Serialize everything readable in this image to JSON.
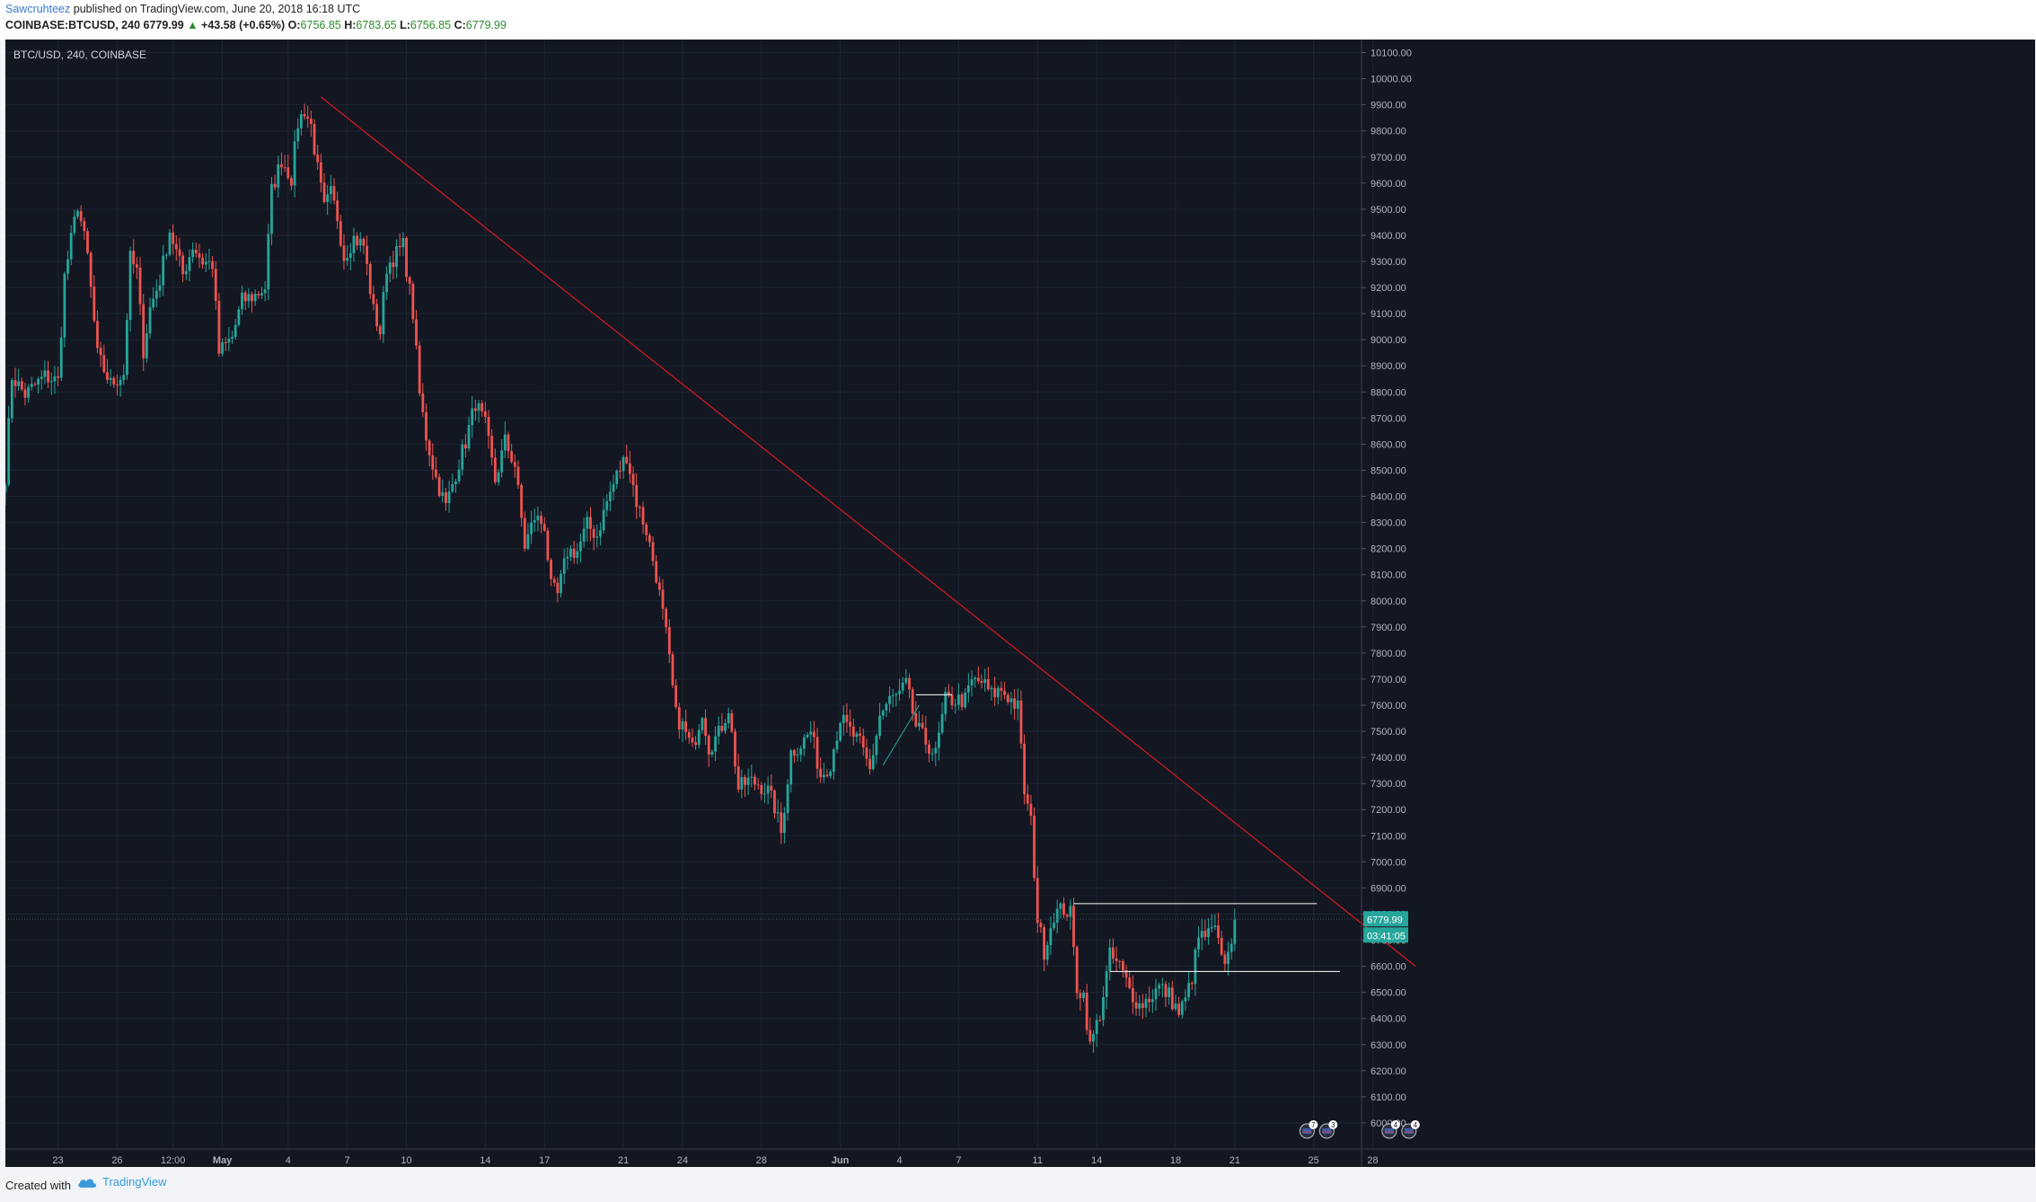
{
  "header": {
    "author": "Sawcruhteez",
    "published": "published on TradingView.com, June 20, 2018 16:18 UTC",
    "symbol": "COINBASE:BTCUSD, 240",
    "last": "6779.99",
    "arrow": "▲",
    "change": "+43.58 (+0.65%)",
    "o_label": "O:",
    "o_value": "6756.85",
    "h_label": "H:",
    "h_value": "6783.65",
    "l_label": "L:",
    "l_value": "6756.85",
    "c_label": "C:",
    "c_value": "6779.99"
  },
  "footer": {
    "created_with": "Created with",
    "brand": "TradingView"
  },
  "colors": {
    "background": "#131722",
    "grid": "#1e2433",
    "up": "#26a69a",
    "down": "#ef5350",
    "trendline": "#c2181f",
    "level": "#ffffff",
    "price_tag": "#26a69a"
  },
  "chart_data": {
    "type": "candlestick",
    "title": "BTC/USD, 240, COINBASE",
    "ylim": [
      5900,
      10150
    ],
    "y_ticks": [
      10100,
      10000,
      9900,
      9800,
      9700,
      9600,
      9500,
      9400,
      9300,
      9200,
      9100,
      9000,
      8900,
      8800,
      8700,
      8600,
      8500,
      8400,
      8300,
      8200,
      8100,
      8000,
      7900,
      7800,
      7700,
      7600,
      7500,
      7400,
      7300,
      7200,
      7100,
      7000,
      6900,
      6800,
      6700,
      6600,
      6500,
      6400,
      6300,
      6200,
      6100,
      6000
    ],
    "y_tick_labels": [
      "10100.00",
      "10000.00",
      "9900.00",
      "9800.00",
      "9700.00",
      "9600.00",
      "9500.00",
      "9400.00",
      "9300.00",
      "9200.00",
      "9100.00",
      "9000.00",
      "8900.00",
      "8800.00",
      "8700.00",
      "8600.00",
      "8500.00",
      "8400.00",
      "8300.00",
      "8200.00",
      "8100.00",
      "8000.00",
      "7900.00",
      "7800.00",
      "7700.00",
      "7600.00",
      "7500.00",
      "7400.00",
      "7300.00",
      "7200.00",
      "7100.00",
      "7000.00",
      "6900.00",
      "6800.00",
      "6700.00",
      "6600.00",
      "6500.00",
      "6400.00",
      "6300.00",
      "6200.00",
      "6100.00",
      "6000.00"
    ],
    "x_range": [
      0,
      456
    ],
    "x_ticks": [
      {
        "label": "23",
        "i": 16
      },
      {
        "label": "26",
        "i": 34
      },
      {
        "label": "12:00",
        "i": 51
      },
      {
        "label": "May",
        "i": 66
      },
      {
        "label": "4",
        "i": 86
      },
      {
        "label": "7",
        "i": 104
      },
      {
        "label": "10",
        "i": 122
      },
      {
        "label": "14",
        "i": 146
      },
      {
        "label": "17",
        "i": 164
      },
      {
        "label": "21",
        "i": 188
      },
      {
        "label": "24",
        "i": 206
      },
      {
        "label": "28",
        "i": 230
      },
      {
        "label": "Jun",
        "i": 254
      },
      {
        "label": "4",
        "i": 272
      },
      {
        "label": "7",
        "i": 290
      },
      {
        "label": "11",
        "i": 314
      },
      {
        "label": "14",
        "i": 332
      },
      {
        "label": "18",
        "i": 356
      },
      {
        "label": "21",
        "i": 374
      },
      {
        "label": "25",
        "i": 398
      },
      {
        "label": "28",
        "i": 416
      }
    ],
    "anchors": [
      [
        0,
        8480
      ],
      [
        2,
        8860
      ],
      [
        6,
        8790
      ],
      [
        12,
        8860
      ],
      [
        16,
        8840
      ],
      [
        18,
        9240
      ],
      [
        22,
        9520
      ],
      [
        25,
        9320
      ],
      [
        28,
        8940
      ],
      [
        32,
        8830
      ],
      [
        36,
        8870
      ],
      [
        38,
        9310
      ],
      [
        40,
        9260
      ],
      [
        42,
        8960
      ],
      [
        44,
        9120
      ],
      [
        47,
        9230
      ],
      [
        50,
        9420
      ],
      [
        54,
        9250
      ],
      [
        57,
        9360
      ],
      [
        60,
        9300
      ],
      [
        63,
        9290
      ],
      [
        65,
        8950
      ],
      [
        69,
        9010
      ],
      [
        72,
        9150
      ],
      [
        76,
        9170
      ],
      [
        79,
        9200
      ],
      [
        81,
        9570
      ],
      [
        84,
        9690
      ],
      [
        87,
        9620
      ],
      [
        89,
        9830
      ],
      [
        91,
        9880
      ],
      [
        93,
        9820
      ],
      [
        95,
        9650
      ],
      [
        97,
        9500
      ],
      [
        99,
        9560
      ],
      [
        101,
        9470
      ],
      [
        103,
        9320
      ],
      [
        106,
        9390
      ],
      [
        109,
        9360
      ],
      [
        112,
        9110
      ],
      [
        114,
        9030
      ],
      [
        116,
        9280
      ],
      [
        119,
        9330
      ],
      [
        121,
        9360
      ],
      [
        124,
        9100
      ],
      [
        126,
        8790
      ],
      [
        128,
        8630
      ],
      [
        131,
        8470
      ],
      [
        134,
        8360
      ],
      [
        137,
        8490
      ],
      [
        140,
        8610
      ],
      [
        143,
        8760
      ],
      [
        146,
        8670
      ],
      [
        149,
        8460
      ],
      [
        152,
        8610
      ],
      [
        155,
        8520
      ],
      [
        158,
        8210
      ],
      [
        161,
        8320
      ],
      [
        164,
        8290
      ],
      [
        166,
        8050
      ],
      [
        168,
        8020
      ],
      [
        171,
        8190
      ],
      [
        174,
        8190
      ],
      [
        177,
        8290
      ],
      [
        180,
        8250
      ],
      [
        183,
        8380
      ],
      [
        186,
        8480
      ],
      [
        189,
        8560
      ],
      [
        192,
        8380
      ],
      [
        195,
        8270
      ],
      [
        198,
        8100
      ],
      [
        201,
        7870
      ],
      [
        204,
        7560
      ],
      [
        206,
        7520
      ],
      [
        209,
        7430
      ],
      [
        212,
        7580
      ],
      [
        214,
        7440
      ],
      [
        217,
        7490
      ],
      [
        220,
        7590
      ],
      [
        223,
        7280
      ],
      [
        226,
        7310
      ],
      [
        229,
        7300
      ],
      [
        232,
        7270
      ],
      [
        234,
        7210
      ],
      [
        236,
        7110
      ],
      [
        239,
        7420
      ],
      [
        242,
        7450
      ],
      [
        245,
        7500
      ],
      [
        248,
        7330
      ],
      [
        251,
        7380
      ],
      [
        254,
        7550
      ],
      [
        257,
        7500
      ],
      [
        260,
        7450
      ],
      [
        263,
        7350
      ],
      [
        266,
        7560
      ],
      [
        269,
        7620
      ],
      [
        272,
        7640
      ],
      [
        274,
        7680
      ],
      [
        277,
        7520
      ],
      [
        280,
        7460
      ],
      [
        283,
        7410
      ],
      [
        286,
        7620
      ],
      [
        289,
        7620
      ],
      [
        292,
        7620
      ],
      [
        294,
        7690
      ],
      [
        297,
        7690
      ],
      [
        300,
        7640
      ],
      [
        303,
        7660
      ],
      [
        306,
        7620
      ],
      [
        308,
        7590
      ],
      [
        310,
        7270
      ],
      [
        312,
        7150
      ],
      [
        314,
        6780
      ],
      [
        316,
        6660
      ],
      [
        319,
        6800
      ],
      [
        322,
        6820
      ],
      [
        324,
        6800
      ],
      [
        326,
        6520
      ],
      [
        328,
        6490
      ],
      [
        330,
        6290
      ],
      [
        333,
        6420
      ],
      [
        336,
        6640
      ],
      [
        339,
        6600
      ],
      [
        342,
        6510
      ],
      [
        345,
        6450
      ],
      [
        348,
        6480
      ],
      [
        351,
        6520
      ],
      [
        354,
        6490
      ],
      [
        357,
        6420
      ],
      [
        359,
        6470
      ],
      [
        361,
        6560
      ],
      [
        363,
        6710
      ],
      [
        366,
        6720
      ],
      [
        368,
        6740
      ],
      [
        370,
        6620
      ],
      [
        372,
        6640
      ],
      [
        374,
        6780
      ]
    ],
    "price_label": "6779.99",
    "countdown": "03:41:05",
    "trendline": [
      {
        "i": 96,
        "p": 9930
      },
      {
        "i": 429,
        "p": 6600
      }
    ],
    "levels": [
      {
        "p": 6840,
        "i_start": 325,
        "i_end": 399
      },
      {
        "p": 6580,
        "i_start": 336,
        "i_end": 406
      },
      {
        "p": 7640,
        "i_start": 277,
        "i_end": 288
      }
    ],
    "green_line": [
      {
        "i": 267,
        "p": 7370
      },
      {
        "i": 278,
        "p": 7600
      }
    ],
    "events": [
      {
        "i": 396,
        "label": "7"
      },
      {
        "i": 402,
        "label": "3"
      },
      {
        "i": 421,
        "label": "4"
      },
      {
        "i": 427,
        "label": "4"
      }
    ]
  }
}
